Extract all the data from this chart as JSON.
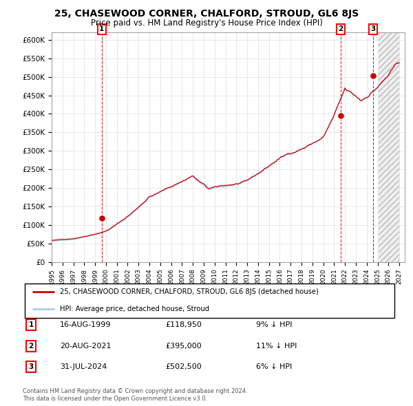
{
  "title": "25, CHASEWOOD CORNER, CHALFORD, STROUD, GL6 8JS",
  "subtitle": "Price paid vs. HM Land Registry's House Price Index (HPI)",
  "xlim_start": 1995.0,
  "xlim_end": 2027.5,
  "ylim_min": 0,
  "ylim_max": 620000,
  "yticks": [
    0,
    50000,
    100000,
    150000,
    200000,
    250000,
    300000,
    350000,
    400000,
    450000,
    500000,
    550000,
    600000
  ],
  "ytick_labels": [
    "£0",
    "£50K",
    "£100K",
    "£150K",
    "£200K",
    "£250K",
    "£300K",
    "£350K",
    "£400K",
    "£450K",
    "£500K",
    "£550K",
    "£600K"
  ],
  "xticks": [
    1995,
    1996,
    1997,
    1998,
    1999,
    2000,
    2001,
    2002,
    2003,
    2004,
    2005,
    2006,
    2007,
    2008,
    2009,
    2010,
    2011,
    2012,
    2013,
    2014,
    2015,
    2016,
    2017,
    2018,
    2019,
    2020,
    2021,
    2022,
    2023,
    2024,
    2025,
    2026,
    2027
  ],
  "hpi_color": "#aacbe8",
  "price_color": "#cc0000",
  "vline_color": "#cc0000",
  "transactions": [
    {
      "label": "1",
      "date_x": 1999.62,
      "price": 118950,
      "date_str": "16-AUG-1999",
      "pct": "9%",
      "dir": "↓"
    },
    {
      "label": "2",
      "date_x": 2021.62,
      "price": 395000,
      "date_str": "20-AUG-2021",
      "pct": "11%",
      "dir": "↓"
    },
    {
      "label": "3",
      "date_x": 2024.58,
      "price": 502500,
      "date_str": "31-JUL-2024",
      "pct": "6%",
      "dir": "↓"
    }
  ],
  "legend_property_label": "25, CHASEWOOD CORNER, CHALFORD, STROUD, GL6 8JS (detached house)",
  "legend_hpi_label": "HPI: Average price, detached house, Stroud",
  "footer1": "Contains HM Land Registry data © Crown copyright and database right 2024.",
  "footer2": "This data is licensed under the Open Government Licence v3.0.",
  "background_color": "#ffffff",
  "grid_color": "#dddddd"
}
